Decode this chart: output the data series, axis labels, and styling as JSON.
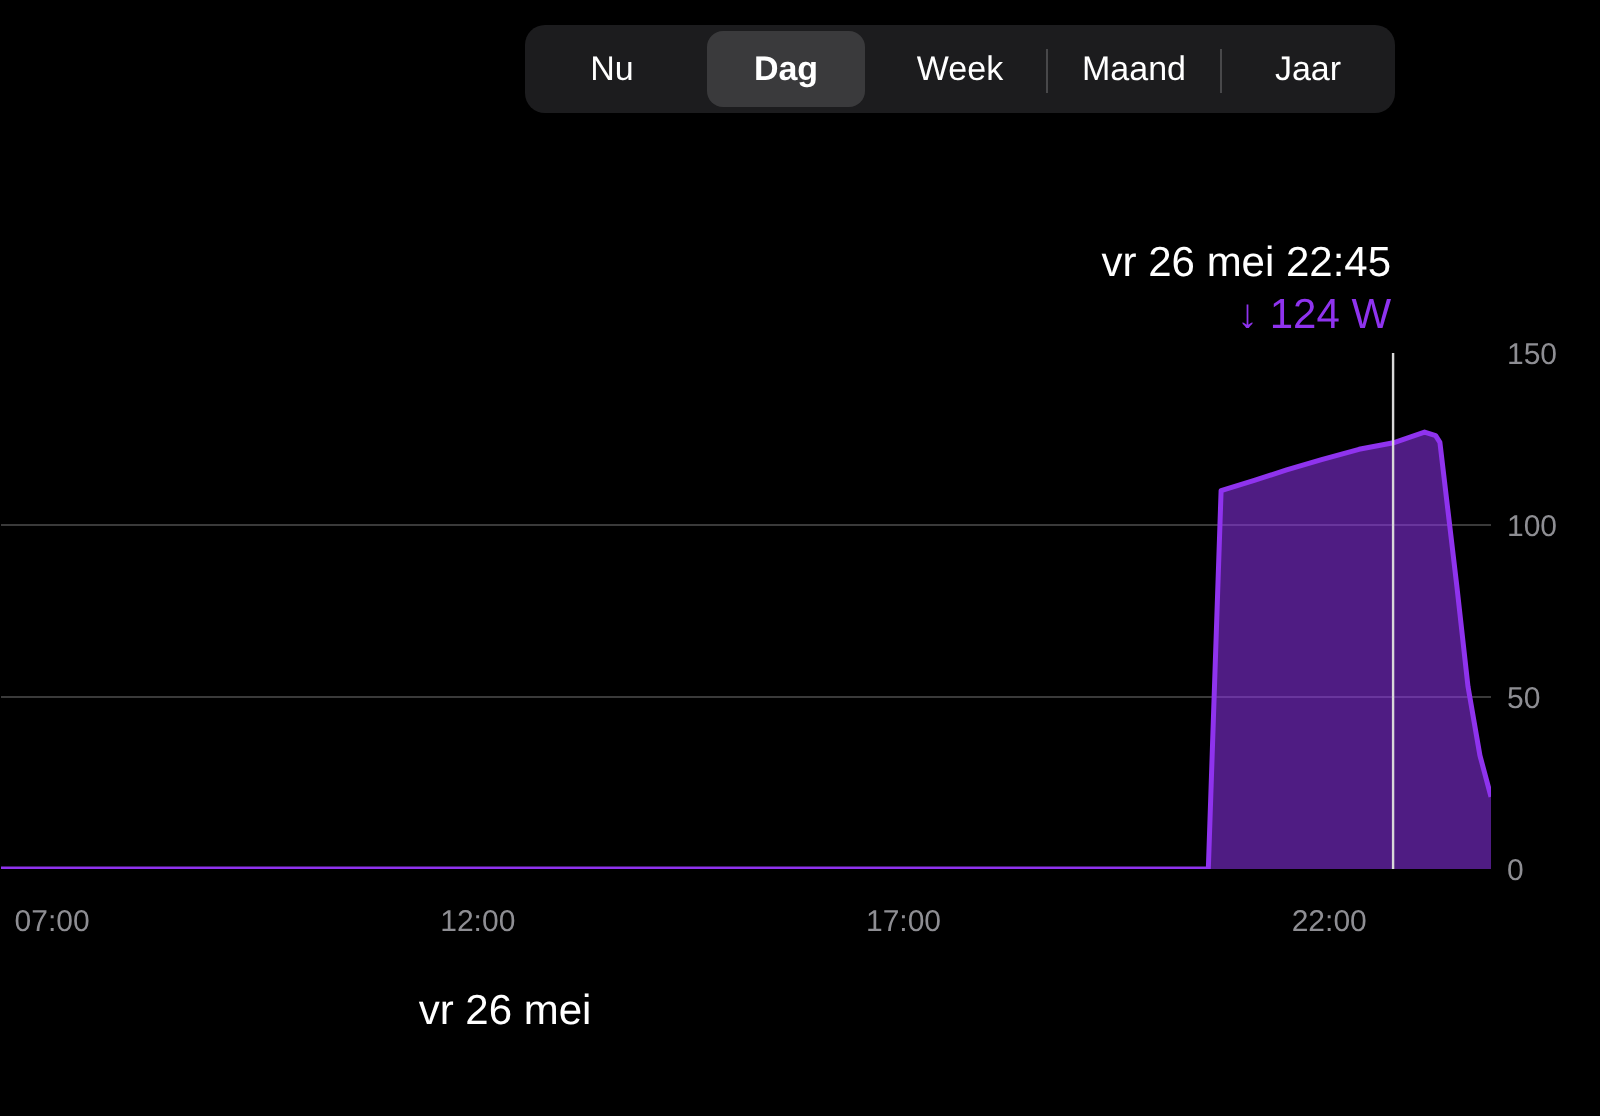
{
  "chart_data": {
    "type": "area",
    "x": [
      6.4,
      20.58,
      20.73,
      21.12,
      21.5,
      21.91,
      22.35,
      22.77,
      23.12,
      23.25,
      23.3,
      23.5,
      23.63,
      23.77,
      23.9
    ],
    "series": [
      {
        "color": "#8f33ee",
        "values": [
          0,
          0,
          110,
          113,
          116,
          119,
          122,
          124,
          127,
          126,
          124,
          82,
          53,
          33,
          21
        ]
      }
    ],
    "xlim": [
      6.4,
      23.9
    ],
    "xticks": [
      {
        "value": 7,
        "label": "07:00"
      },
      {
        "value": 12,
        "label": "12:00"
      },
      {
        "value": 17,
        "label": "17:00"
      },
      {
        "value": 22,
        "label": "22:00"
      }
    ],
    "ylim": [
      0,
      150
    ],
    "yticks": [
      0,
      50,
      100,
      150
    ],
    "grid": "y",
    "ref_lines": [
      {
        "axis": "x",
        "value": 22.75,
        "color": "#d9d9d9"
      }
    ],
    "annotations": [
      "vr 26 mei 22:45",
      "↓ 124 W",
      "Nu",
      "Dag",
      "Week",
      "Maand",
      "Jaar",
      "vr 26 mei"
    ]
  }
}
